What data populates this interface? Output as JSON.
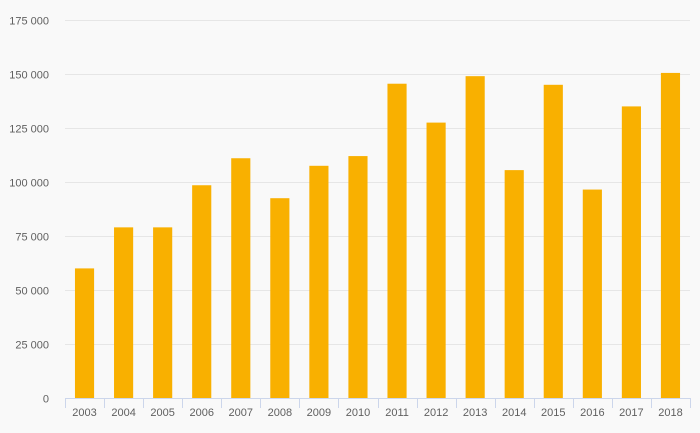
{
  "chart_data": {
    "type": "bar",
    "title": "",
    "xlabel": "",
    "ylabel": "",
    "categories": [
      "2003",
      "2004",
      "2005",
      "2006",
      "2007",
      "2008",
      "2009",
      "2010",
      "2011",
      "2012",
      "2013",
      "2014",
      "2015",
      "2016",
      "2017",
      "2018"
    ],
    "values": [
      60000,
      79000,
      79000,
      98500,
      111000,
      92500,
      107500,
      112000,
      145500,
      127500,
      149000,
      105500,
      145000,
      96500,
      135000,
      150500
    ],
    "ylim": [
      0,
      175000
    ],
    "yticks": [
      0,
      25000,
      50000,
      75000,
      100000,
      125000,
      150000,
      175000
    ],
    "ytick_labels": [
      "0",
      "25 000",
      "50 000",
      "75 000",
      "100 000",
      "125 000",
      "150 000",
      "175 000"
    ],
    "grid": true,
    "legend": "none",
    "colors": {
      "bar": "#f9b000",
      "grid": "#e6e6e6",
      "axis": "#ccd6eb",
      "label": "#606060",
      "background": "#f9f9f9"
    }
  }
}
